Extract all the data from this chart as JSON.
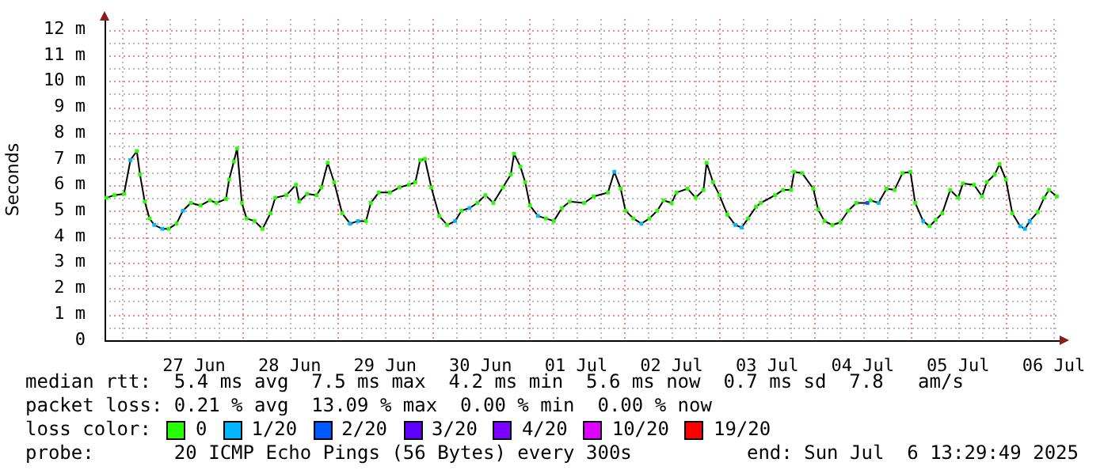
{
  "chart_data": {
    "type": "line",
    "ylabel": "Seconds",
    "legend_title": "loss color:",
    "legend": "bottom",
    "marker": "square",
    "line_style": "solid",
    "grid": true,
    "xlim": [
      "2025-06-26T13:30",
      "2025-07-06T13:30"
    ],
    "xticks": [
      {
        "value": "2025-06-26T18:00",
        "label": null
      },
      {
        "value": "2025-06-27T00:00",
        "label": null
      },
      {
        "value": "2025-06-27T06:00",
        "label": null
      },
      {
        "value": "2025-06-27T12:00",
        "label": "27 Jun"
      },
      {
        "value": "2025-06-27T18:00",
        "label": null
      },
      {
        "value": "2025-06-28T00:00",
        "label": null
      },
      {
        "value": "2025-06-28T06:00",
        "label": null
      },
      {
        "value": "2025-06-28T12:00",
        "label": "28 Jun"
      },
      {
        "value": "2025-06-28T18:00",
        "label": null
      },
      {
        "value": "2025-06-29T00:00",
        "label": null
      },
      {
        "value": "2025-06-29T06:00",
        "label": null
      },
      {
        "value": "2025-06-29T12:00",
        "label": "29 Jun"
      },
      {
        "value": "2025-06-29T18:00",
        "label": null
      },
      {
        "value": "2025-06-30T00:00",
        "label": null
      },
      {
        "value": "2025-06-30T06:00",
        "label": null
      },
      {
        "value": "2025-06-30T12:00",
        "label": "30 Jun"
      },
      {
        "value": "2025-06-30T18:00",
        "label": null
      },
      {
        "value": "2025-07-01T00:00",
        "label": null
      },
      {
        "value": "2025-07-01T06:00",
        "label": null
      },
      {
        "value": "2025-07-01T12:00",
        "label": "01 Jul"
      },
      {
        "value": "2025-07-01T18:00",
        "label": null
      },
      {
        "value": "2025-07-02T00:00",
        "label": null
      },
      {
        "value": "2025-07-02T06:00",
        "label": null
      },
      {
        "value": "2025-07-02T12:00",
        "label": "02 Jul"
      },
      {
        "value": "2025-07-02T18:00",
        "label": null
      },
      {
        "value": "2025-07-03T00:00",
        "label": null
      },
      {
        "value": "2025-07-03T06:00",
        "label": null
      },
      {
        "value": "2025-07-03T12:00",
        "label": "03 Jul"
      },
      {
        "value": "2025-07-03T18:00",
        "label": null
      },
      {
        "value": "2025-07-04T00:00",
        "label": null
      },
      {
        "value": "2025-07-04T06:00",
        "label": null
      },
      {
        "value": "2025-07-04T12:00",
        "label": "04 Jul"
      },
      {
        "value": "2025-07-04T18:00",
        "label": null
      },
      {
        "value": "2025-07-05T00:00",
        "label": null
      },
      {
        "value": "2025-07-05T06:00",
        "label": null
      },
      {
        "value": "2025-07-05T12:00",
        "label": "05 Jul"
      },
      {
        "value": "2025-07-05T18:00",
        "label": null
      },
      {
        "value": "2025-07-06T00:00",
        "label": null
      },
      {
        "value": "2025-07-06T06:00",
        "label": null
      },
      {
        "value": "2025-07-06T12:00",
        "label": "06 Jul"
      }
    ],
    "ylim": [
      0,
      12.4
    ],
    "yticks": [
      0,
      {
        "value": 0.5,
        "label": null
      },
      {
        "value": 1,
        "label": "1 m"
      },
      {
        "value": 1.5,
        "label": null
      },
      {
        "value": 2,
        "label": "2 m"
      },
      {
        "value": 2.5,
        "label": null
      },
      {
        "value": 3,
        "label": "3 m"
      },
      {
        "value": 3.5,
        "label": null
      },
      {
        "value": 4,
        "label": "4 m"
      },
      {
        "value": 4.5,
        "label": null
      },
      {
        "value": 5,
        "label": "5 m"
      },
      {
        "value": 5.5,
        "label": null
      },
      {
        "value": 6,
        "label": "6 m"
      },
      {
        "value": 6.5,
        "label": null
      },
      {
        "value": 7,
        "label": "7 m"
      },
      {
        "value": 7.5,
        "label": null
      },
      {
        "value": 8,
        "label": "8 m"
      },
      {
        "value": 8.5,
        "label": null
      },
      {
        "value": 9,
        "label": "9 m"
      },
      {
        "value": 9.5,
        "label": null
      },
      {
        "value": 10,
        "label": "10 m"
      },
      {
        "value": 10.5,
        "label": null
      },
      {
        "value": 11,
        "label": "11 m"
      },
      {
        "value": 11.5,
        "label": null
      },
      {
        "value": 12,
        "label": "12 m"
      }
    ],
    "x": [
      "2025-06-26T14:00",
      "2025-06-26T16:00",
      "2025-06-26T18:24",
      "2025-06-26T20:00",
      "2025-06-26T21:36",
      "2025-06-26T22:24",
      "2025-06-26T23:36",
      "2025-06-27T00:48",
      "2025-06-27T02:00",
      "2025-06-27T04:00",
      "2025-06-27T05:36",
      "2025-06-27T07:36",
      "2025-06-27T09:12",
      "2025-06-27T11:12",
      "2025-06-27T13:36",
      "2025-06-27T16:00",
      "2025-06-27T17:36",
      "2025-06-27T20:00",
      "2025-06-27T20:48",
      "2025-06-27T22:00",
      "2025-06-27T22:48",
      "2025-06-28T00:00",
      "2025-06-28T01:12",
      "2025-06-28T03:12",
      "2025-06-28T05:12",
      "2025-06-28T07:12",
      "2025-06-28T08:24",
      "2025-06-28T11:12",
      "2025-06-28T13:36",
      "2025-06-28T14:24",
      "2025-06-28T16:24",
      "2025-06-28T18:48",
      "2025-06-28T20:00",
      "2025-06-28T21:36",
      "2025-06-28T23:12",
      "2025-06-29T01:12",
      "2025-06-29T03:12",
      "2025-06-29T05:12",
      "2025-06-29T07:12",
      "2025-06-29T08:24",
      "2025-06-29T10:24",
      "2025-06-29T13:12",
      "2025-06-29T15:36",
      "2025-06-29T18:00",
      "2025-06-29T19:36",
      "2025-06-29T20:48",
      "2025-06-29T22:00",
      "2025-06-29T23:36",
      "2025-06-30T01:36",
      "2025-06-30T03:36",
      "2025-06-30T05:36",
      "2025-06-30T07:12",
      "2025-06-30T09:12",
      "2025-06-30T11:12",
      "2025-06-30T13:12",
      "2025-06-30T15:12",
      "2025-06-30T17:36",
      "2025-06-30T19:36",
      "2025-06-30T20:24",
      "2025-06-30T22:00",
      "2025-06-30T23:12",
      "2025-07-01T00:24",
      "2025-07-01T02:24",
      "2025-07-01T04:24",
      "2025-07-01T06:24",
      "2025-07-01T08:24",
      "2025-07-01T10:24",
      "2025-07-01T14:00",
      "2025-07-01T16:24",
      "2025-07-01T20:00",
      "2025-07-01T21:36",
      "2025-07-01T23:12",
      "2025-07-02T00:24",
      "2025-07-02T02:24",
      "2025-07-02T04:24",
      "2025-07-02T06:24",
      "2025-07-02T08:24",
      "2025-07-02T10:00",
      "2025-07-02T12:00",
      "2025-07-02T13:12",
      "2025-07-02T16:00",
      "2025-07-02T18:00",
      "2025-07-02T20:00",
      "2025-07-02T20:48",
      "2025-07-02T22:24",
      "2025-07-03T00:00",
      "2025-07-03T02:00",
      "2025-07-03T04:00",
      "2025-07-03T05:36",
      "2025-07-03T07:12",
      "2025-07-03T09:12",
      "2025-07-03T10:24",
      "2025-07-03T14:00",
      "2025-07-03T16:00",
      "2025-07-03T18:00",
      "2025-07-03T18:48",
      "2025-07-03T20:48",
      "2025-07-03T23:36",
      "2025-07-04T00:48",
      "2025-07-04T02:24",
      "2025-07-04T04:24",
      "2025-07-04T06:24",
      "2025-07-04T08:24",
      "2025-07-04T10:24",
      "2025-07-04T13:12",
      "2025-07-04T14:00",
      "2025-07-04T16:00",
      "2025-07-04T18:00",
      "2025-07-04T20:00",
      "2025-07-04T22:00",
      "2025-07-05T00:00",
      "2025-07-05T01:12",
      "2025-07-05T03:12",
      "2025-07-05T04:48",
      "2025-07-05T06:24",
      "2025-07-05T08:00",
      "2025-07-05T10:00",
      "2025-07-05T12:00",
      "2025-07-05T13:12",
      "2025-07-05T16:00",
      "2025-07-05T18:00",
      "2025-07-05T19:12",
      "2025-07-05T21:12",
      "2025-07-05T22:24",
      "2025-07-06T00:00",
      "2025-07-06T01:36",
      "2025-07-06T03:36",
      "2025-07-06T04:48",
      "2025-07-06T06:00",
      "2025-07-06T08:00",
      "2025-07-06T09:36",
      "2025-07-06T10:48",
      "2025-07-06T12:48"
    ],
    "series": [
      {
        "color": "#000000",
        "values": [
          5.5,
          5.6,
          5.65,
          6.95,
          7.3,
          6.4,
          5.35,
          4.7,
          4.45,
          4.3,
          4.3,
          4.5,
          5.0,
          5.3,
          5.2,
          5.4,
          5.3,
          5.45,
          6.2,
          6.9,
          7.4,
          5.3,
          4.7,
          4.6,
          4.3,
          4.9,
          5.5,
          5.6,
          6.0,
          5.35,
          5.65,
          5.6,
          5.9,
          6.85,
          6.1,
          4.9,
          4.5,
          4.6,
          4.6,
          5.3,
          5.7,
          5.7,
          5.9,
          6.0,
          6.1,
          6.95,
          7.0,
          5.9,
          4.8,
          4.45,
          4.6,
          5.0,
          5.1,
          5.3,
          5.6,
          5.3,
          5.9,
          6.4,
          7.2,
          6.7,
          6.1,
          5.2,
          4.8,
          4.7,
          4.6,
          5.1,
          5.35,
          5.3,
          5.55,
          5.7,
          6.5,
          5.85,
          5.0,
          4.7,
          4.5,
          4.7,
          5.0,
          5.4,
          5.3,
          5.7,
          5.85,
          5.5,
          5.8,
          6.85,
          6.1,
          5.6,
          4.85,
          4.45,
          4.35,
          4.7,
          5.15,
          5.3,
          5.6,
          5.8,
          5.8,
          6.5,
          6.45,
          5.85,
          5.05,
          4.6,
          4.45,
          4.55,
          5.0,
          5.3,
          5.3,
          5.4,
          5.3,
          5.85,
          5.8,
          6.45,
          6.5,
          5.3,
          4.6,
          4.4,
          4.65,
          4.9,
          5.8,
          5.5,
          6.05,
          6.0,
          5.55,
          6.1,
          6.4,
          6.8,
          6.2,
          4.9,
          4.4,
          4.3,
          4.6,
          4.95,
          5.5,
          5.8,
          5.55
        ],
        "colors": [
          "#26ff00",
          "#26ff00",
          "#26ff00",
          "#00b8ff",
          "#26ff00",
          "#26ff00",
          "#26ff00",
          "#26ff00",
          "#00b8ff",
          "#00b8ff",
          "#26ff00",
          "#26ff00",
          "#00b8ff",
          "#26ff00",
          "#26ff00",
          "#26ff00",
          "#26ff00",
          "#26ff00",
          "#26ff00",
          "#26ff00",
          "#26ff00",
          "#26ff00",
          "#26ff00",
          "#26ff00",
          "#26ff00",
          "#26ff00",
          "#26ff00",
          "#26ff00",
          "#26ff00",
          "#26ff00",
          "#26ff00",
          "#26ff00",
          "#26ff00",
          "#26ff00",
          "#26ff00",
          "#26ff00",
          "#00b8ff",
          "#00b8ff",
          "#26ff00",
          "#26ff00",
          "#26ff00",
          "#26ff00",
          "#26ff00",
          "#26ff00",
          "#26ff00",
          "#26ff00",
          "#26ff00",
          "#26ff00",
          "#26ff00",
          "#26ff00",
          "#00b8ff",
          "#26ff00",
          "#00b8ff",
          "#26ff00",
          "#26ff00",
          "#26ff00",
          "#26ff00",
          "#26ff00",
          "#26ff00",
          "#26ff00",
          "#26ff00",
          "#26ff00",
          "#00b8ff",
          "#26ff00",
          "#26ff00",
          "#26ff00",
          "#26ff00",
          "#26ff00",
          "#26ff00",
          "#26ff00",
          "#00b8ff",
          "#26ff00",
          "#26ff00",
          "#26ff00",
          "#00b8ff",
          "#26ff00",
          "#26ff00",
          "#26ff00",
          "#26ff00",
          "#26ff00",
          "#26ff00",
          "#26ff00",
          "#26ff00",
          "#26ff00",
          "#26ff00",
          "#26ff00",
          "#26ff00",
          "#00b8ff",
          "#00b8ff",
          "#26ff00",
          "#26ff00",
          "#26ff00",
          "#26ff00",
          "#26ff00",
          "#26ff00",
          "#26ff00",
          "#26ff00",
          "#26ff00",
          "#26ff00",
          "#26ff00",
          "#26ff00",
          "#26ff00",
          "#26ff00",
          "#26ff00",
          "#0059ff",
          "#26ff00",
          "#00b8ff",
          "#26ff00",
          "#26ff00",
          "#26ff00",
          "#26ff00",
          "#26ff00",
          "#00b8ff",
          "#26ff00",
          "#26ff00",
          "#26ff00",
          "#26ff00",
          "#26ff00",
          "#26ff00",
          "#26ff00",
          "#26ff00",
          "#26ff00",
          "#26ff00",
          "#26ff00",
          "#26ff00",
          "#26ff00",
          "#00b8ff",
          "#00b8ff",
          "#00b8ff",
          "#26ff00",
          "#26ff00",
          "#26ff00",
          "#26ff00"
        ]
      },
      {
        "type": "scatter",
        "name": "0",
        "color": "#26ff00",
        "values": [
          null,
          null,
          null,
          null,
          null,
          null,
          null,
          null,
          null,
          null,
          null,
          null,
          null,
          null,
          null,
          null,
          null,
          null,
          null,
          null,
          null,
          null,
          null,
          null,
          null,
          null,
          null,
          null,
          null,
          null,
          null,
          null,
          null,
          null,
          null,
          null,
          null,
          null,
          null,
          null,
          null,
          null,
          null,
          null,
          null,
          null,
          null,
          null,
          null,
          null,
          null,
          null,
          null,
          null,
          null,
          null,
          null,
          null,
          null,
          null,
          null,
          null,
          null,
          null,
          null,
          null,
          null,
          null,
          null,
          null,
          null,
          null,
          null,
          null,
          null,
          null,
          null,
          null,
          null,
          null,
          null,
          null,
          null,
          null,
          null,
          null,
          null,
          null,
          null,
          null,
          null,
          null,
          null,
          null,
          null,
          null,
          null,
          null,
          null,
          null,
          null,
          null,
          null,
          null,
          null,
          null,
          null,
          null,
          null,
          null,
          null,
          null,
          null,
          null,
          null,
          null,
          null,
          null,
          null,
          null,
          null,
          null,
          null,
          null,
          null,
          null,
          null,
          null,
          null,
          null,
          null,
          null,
          null
        ]
      },
      {
        "type": "scatter",
        "name": "1/20",
        "color": "#00b8ff",
        "values": [
          null,
          null,
          null,
          null,
          null,
          null,
          null,
          null,
          null,
          null,
          null,
          null,
          null,
          null,
          null,
          null,
          null,
          null,
          null,
          null,
          null,
          null,
          null,
          null,
          null,
          null,
          null,
          null,
          null,
          null,
          null,
          null,
          null,
          null,
          null,
          null,
          null,
          null,
          null,
          null,
          null,
          null,
          null,
          null,
          null,
          null,
          null,
          null,
          null,
          null,
          null,
          null,
          null,
          null,
          null,
          null,
          null,
          null,
          null,
          null,
          null,
          null,
          null,
          null,
          null,
          null,
          null,
          null,
          null,
          null,
          null,
          null,
          null,
          null,
          null,
          null,
          null,
          null,
          null,
          null,
          null,
          null,
          null,
          null,
          null,
          null,
          null,
          null,
          null,
          null,
          null,
          null,
          null,
          null,
          null,
          null,
          null,
          null,
          null,
          null,
          null,
          null,
          null,
          null,
          null,
          null,
          null,
          null,
          null,
          null,
          null,
          null,
          null,
          null,
          null,
          null,
          null,
          null,
          null,
          null,
          null,
          null,
          null,
          null,
          null,
          null,
          null,
          null,
          null,
          null,
          null,
          null,
          null
        ]
      },
      {
        "type": "scatter",
        "name": "2/20",
        "color": "#0059ff",
        "values": [
          null,
          null,
          null,
          null,
          null,
          null,
          null,
          null,
          null,
          null,
          null,
          null,
          null,
          null,
          null,
          null,
          null,
          null,
          null,
          null,
          null,
          null,
          null,
          null,
          null,
          null,
          null,
          null,
          null,
          null,
          null,
          null,
          null,
          null,
          null,
          null,
          null,
          null,
          null,
          null,
          null,
          null,
          null,
          null,
          null,
          null,
          null,
          null,
          null,
          null,
          null,
          null,
          null,
          null,
          null,
          null,
          null,
          null,
          null,
          null,
          null,
          null,
          null,
          null,
          null,
          null,
          null,
          null,
          null,
          null,
          null,
          null,
          null,
          null,
          null,
          null,
          null,
          null,
          null,
          null,
          null,
          null,
          null,
          null,
          null,
          null,
          null,
          null,
          null,
          null,
          null,
          null,
          null,
          null,
          null,
          null,
          null,
          null,
          null,
          null,
          null,
          null,
          null,
          null,
          null,
          null,
          null,
          null,
          null,
          null,
          null,
          null,
          null,
          null,
          null,
          null,
          null,
          null,
          null,
          null,
          null,
          null,
          null,
          null,
          null,
          null,
          null,
          null,
          null,
          null,
          null,
          null,
          null
        ]
      },
      {
        "type": "scatter",
        "name": "3/20",
        "color": "#5e00ff",
        "values": [
          null,
          null,
          null,
          null,
          null,
          null,
          null,
          null,
          null,
          null,
          null,
          null,
          null,
          null,
          null,
          null,
          null,
          null,
          null,
          null,
          null,
          null,
          null,
          null,
          null,
          null,
          null,
          null,
          null,
          null,
          null,
          null,
          null,
          null,
          null,
          null,
          null,
          null,
          null,
          null,
          null,
          null,
          null,
          null,
          null,
          null,
          null,
          null,
          null,
          null,
          null,
          null,
          null,
          null,
          null,
          null,
          null,
          null,
          null,
          null,
          null,
          null,
          null,
          null,
          null,
          null,
          null,
          null,
          null,
          null,
          null,
          null,
          null,
          null,
          null,
          null,
          null,
          null,
          null,
          null,
          null,
          null,
          null,
          null,
          null,
          null,
          null,
          null,
          null,
          null,
          null,
          null,
          null,
          null,
          null,
          null,
          null,
          null,
          null,
          null,
          null,
          null,
          null,
          null,
          null,
          null,
          null,
          null,
          null,
          null,
          null,
          null,
          null,
          null,
          null,
          null,
          null,
          null,
          null,
          null,
          null,
          null,
          null,
          null,
          null,
          null,
          null,
          null,
          null,
          null,
          null,
          null,
          null
        ]
      },
      {
        "type": "scatter",
        "name": "4/20",
        "color": "#7e00ff",
        "values": [
          null,
          null,
          null,
          null,
          null,
          null,
          null,
          null,
          null,
          null,
          null,
          null,
          null,
          null,
          null,
          null,
          null,
          null,
          null,
          null,
          null,
          null,
          null,
          null,
          null,
          null,
          null,
          null,
          null,
          null,
          null,
          null,
          null,
          null,
          null,
          null,
          null,
          null,
          null,
          null,
          null,
          null,
          null,
          null,
          null,
          null,
          null,
          null,
          null,
          null,
          null,
          null,
          null,
          null,
          null,
          null,
          null,
          null,
          null,
          null,
          null,
          null,
          null,
          null,
          null,
          null,
          null,
          null,
          null,
          null,
          null,
          null,
          null,
          null,
          null,
          null,
          null,
          null,
          null,
          null,
          null,
          null,
          null,
          null,
          null,
          null,
          null,
          null,
          null,
          null,
          null,
          null,
          null,
          null,
          null,
          null,
          null,
          null,
          null,
          null,
          null,
          null,
          null,
          null,
          null,
          null,
          null,
          null,
          null,
          null,
          null,
          null,
          null,
          null,
          null,
          null,
          null,
          null,
          null,
          null,
          null,
          null,
          null,
          null,
          null,
          null,
          null,
          null,
          null,
          null,
          null,
          null,
          null
        ]
      },
      {
        "type": "scatter",
        "name": "10/20",
        "color": "#dd00ff",
        "values": [
          null,
          null,
          null,
          null,
          null,
          null,
          null,
          null,
          null,
          null,
          null,
          null,
          null,
          null,
          null,
          null,
          null,
          null,
          null,
          null,
          null,
          null,
          null,
          null,
          null,
          null,
          null,
          null,
          null,
          null,
          null,
          null,
          null,
          null,
          null,
          null,
          null,
          null,
          null,
          null,
          null,
          null,
          null,
          null,
          null,
          null,
          null,
          null,
          null,
          null,
          null,
          null,
          null,
          null,
          null,
          null,
          null,
          null,
          null,
          null,
          null,
          null,
          null,
          null,
          null,
          null,
          null,
          null,
          null,
          null,
          null,
          null,
          null,
          null,
          null,
          null,
          null,
          null,
          null,
          null,
          null,
          null,
          null,
          null,
          null,
          null,
          null,
          null,
          null,
          null,
          null,
          null,
          null,
          null,
          null,
          null,
          null,
          null,
          null,
          null,
          null,
          null,
          null,
          null,
          null,
          null,
          null,
          null,
          null,
          null,
          null,
          null,
          null,
          null,
          null,
          null,
          null,
          null,
          null,
          null,
          null,
          null,
          null,
          null,
          null,
          null,
          null,
          null,
          null,
          null,
          null,
          null,
          null
        ]
      },
      {
        "type": "scatter",
        "name": "19/20",
        "color": "#ff0000",
        "values": [
          null,
          null,
          null,
          null,
          null,
          null,
          null,
          null,
          null,
          null,
          null,
          null,
          null,
          null,
          null,
          null,
          null,
          null,
          null,
          null,
          null,
          null,
          null,
          null,
          null,
          null,
          null,
          null,
          null,
          null,
          null,
          null,
          null,
          null,
          null,
          null,
          null,
          null,
          null,
          null,
          null,
          null,
          null,
          null,
          null,
          null,
          null,
          null,
          null,
          null,
          null,
          null,
          null,
          null,
          null,
          null,
          null,
          null,
          null,
          null,
          null,
          null,
          null,
          null,
          null,
          null,
          null,
          null,
          null,
          null,
          null,
          null,
          null,
          null,
          null,
          null,
          null,
          null,
          null,
          null,
          null,
          null,
          null,
          null,
          null,
          null,
          null,
          null,
          null,
          null,
          null,
          null,
          null,
          null,
          null,
          null,
          null,
          null,
          null,
          null,
          null,
          null,
          null,
          null,
          null,
          null,
          null,
          null,
          null,
          null,
          null,
          null,
          null,
          null,
          null,
          null,
          null,
          null,
          null,
          null,
          null,
          null,
          null,
          null,
          null,
          null,
          null,
          null,
          null,
          null,
          null,
          null,
          null
        ]
      }
    ],
    "annotations": [
      "median rtt:  5.4 ms avg  7.5 ms max  4.2 ms min  5.6 ms now  0.7 ms sd  7.8   am/s",
      "packet loss: 0.21 % avg  13.09 % max  0.00 % min  0.00 % now",
      "probe:       20 ICMP Echo Pings (56 Bytes) every 300s",
      "end: Sun Jul  6 13:29:49 2025"
    ]
  }
}
